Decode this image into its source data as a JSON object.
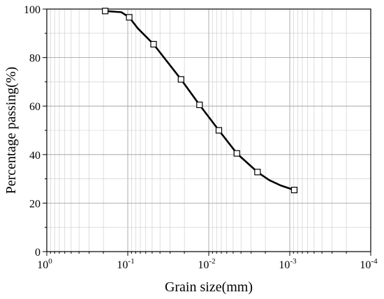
{
  "chart_data": {
    "type": "line",
    "title": "",
    "xlabel": "Grain size(mm)",
    "ylabel": "Percentage passing(%)",
    "x_scale": "log",
    "x_reversed": true,
    "xlim": [
      1,
      0.0001
    ],
    "ylim": [
      0,
      100
    ],
    "x_ticks": [
      {
        "value": 1,
        "base": "10",
        "exp": "0"
      },
      {
        "value": 0.1,
        "base": "10",
        "exp": "-1"
      },
      {
        "value": 0.01,
        "base": "10",
        "exp": "-2"
      },
      {
        "value": 0.001,
        "base": "10",
        "exp": "-3"
      },
      {
        "value": 0.0001,
        "base": "10",
        "exp": "-4"
      }
    ],
    "y_ticks": [
      "0",
      "20",
      "40",
      "60",
      "80",
      "100"
    ],
    "grid": true,
    "series": [
      {
        "curve_x": [
          0.19,
          0.12,
          0.096,
          0.075,
          0.048,
          0.022,
          0.013,
          0.0075,
          0.0045,
          0.0025,
          0.0018,
          0.0013,
          0.00088
        ],
        "curve_y": [
          99.2,
          98.7,
          96.6,
          92,
          85.5,
          71,
          60.5,
          50,
          40.5,
          32.8,
          29.5,
          27.3,
          25.4
        ],
        "marker_x": [
          0.19,
          0.096,
          0.048,
          0.022,
          0.013,
          0.0075,
          0.0045,
          0.0025,
          0.00088
        ],
        "marker_y": [
          99.2,
          96.6,
          85.5,
          71,
          60.5,
          50,
          40.5,
          32.8,
          25.4
        ],
        "marker": "open-square",
        "color": "#000000"
      }
    ]
  }
}
